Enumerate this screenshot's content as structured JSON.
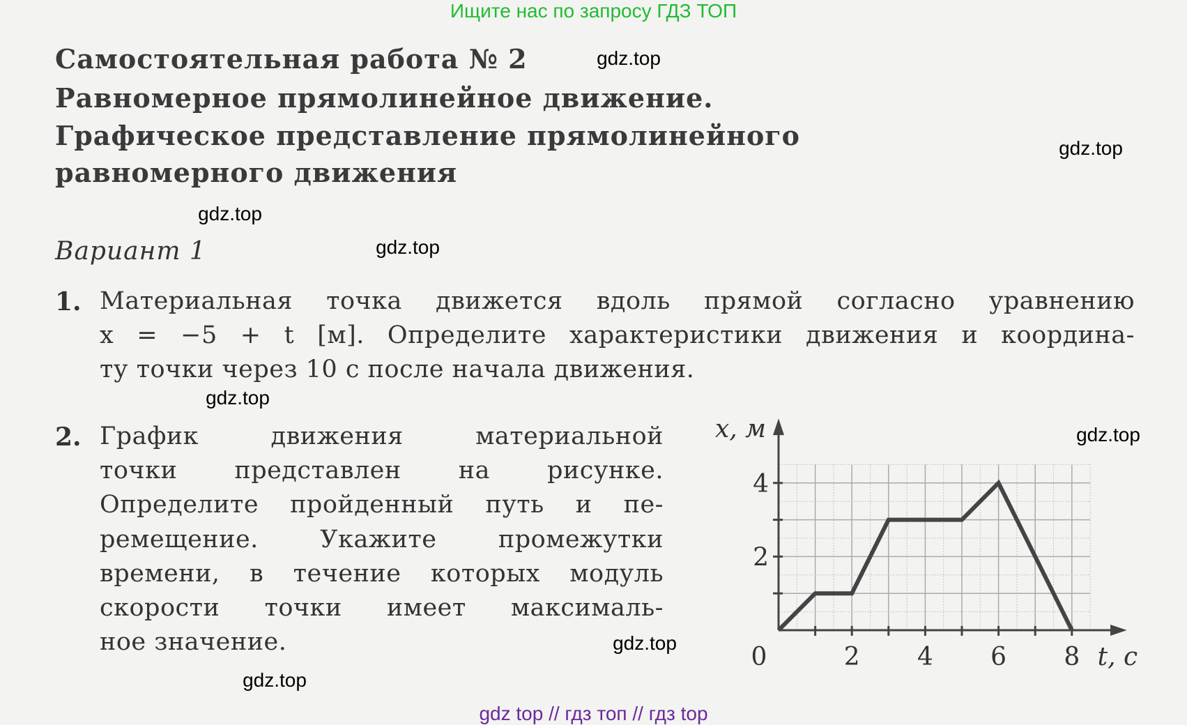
{
  "banner": "Ищите нас по запросу ГДЗ ТОП",
  "title": [
    "Самостоятельная работа  № 2",
    "Равномерное прямолинейное движение.",
    "Графическое представление прямолинейного",
    "равномерного движения"
  ],
  "variant": "Вариант 1",
  "task1": {
    "number": "1.",
    "lines": [
      "Материальная точка движется вдоль прямой согласно уравнению",
      "x = −5 + t [м]. Определите характеристики движения и координа-",
      "ту точки через 10 с после начала движения."
    ]
  },
  "task2": {
    "number": "2.",
    "lines": [
      "График движения материальной",
      "точки представлен на рисунке.",
      "Определите пройденный путь и пе-",
      "ремещение. Укажите промежутки",
      "времени, в течение которых модуль",
      "скорости точки имеет максималь-",
      "ное значение."
    ]
  },
  "watermark": "gdz.top",
  "footer": "gdz top  //  гдз топ  //  гдз top",
  "chart_data": {
    "type": "line",
    "x": [
      0,
      1,
      2,
      3,
      5,
      6,
      8
    ],
    "y": [
      0,
      1,
      1,
      3,
      3,
      4,
      0
    ],
    "xlabel": "t, с",
    "ylabel": "x, м",
    "x_ticks": [
      "0",
      "2",
      "4",
      "6",
      "8"
    ],
    "y_ticks": [
      "2",
      "4"
    ],
    "xlim": [
      0,
      8.5
    ],
    "ylim": [
      0,
      4.5
    ],
    "grid": true
  }
}
